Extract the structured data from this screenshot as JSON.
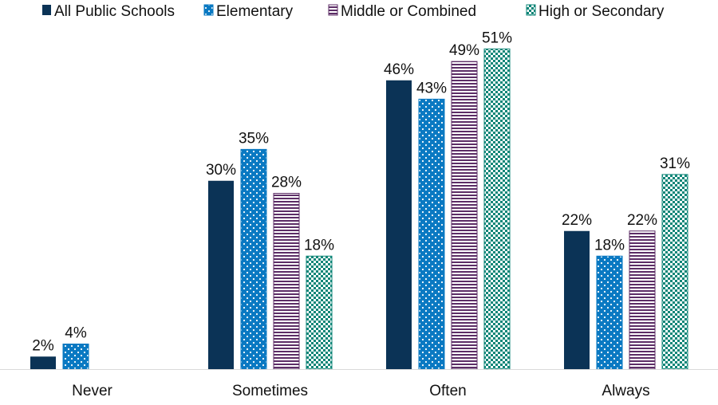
{
  "chart_data": {
    "type": "bar",
    "categories": [
      "Never",
      "Sometimes",
      "Often",
      "Always"
    ],
    "series": [
      {
        "name": "All Public Schools",
        "values": [
          2,
          30,
          46,
          22
        ],
        "labels": [
          "2%",
          "30%",
          "46%",
          "22%"
        ],
        "color": "#0b3356",
        "pattern": "solid"
      },
      {
        "name": "Elementary",
        "values": [
          4,
          35,
          43,
          18
        ],
        "labels": [
          "4%",
          "35%",
          "43%",
          "18%"
        ],
        "color": "#0a79c2",
        "pattern": "dots"
      },
      {
        "name": "Middle or Combined",
        "values": [
          null,
          28,
          49,
          22
        ],
        "labels": [
          "",
          "28%",
          "49%",
          "22%"
        ],
        "color": "#5c2d66",
        "pattern": "horizontal-stripes"
      },
      {
        "name": "High or Secondary",
        "values": [
          null,
          18,
          51,
          31
        ],
        "labels": [
          "",
          "18%",
          "51%",
          "31%"
        ],
        "color": "#0e8577",
        "pattern": "checker"
      }
    ],
    "ylim": [
      0,
      56
    ],
    "legend_position": "top",
    "grid": false,
    "title": "",
    "xlabel": "",
    "ylabel": ""
  }
}
